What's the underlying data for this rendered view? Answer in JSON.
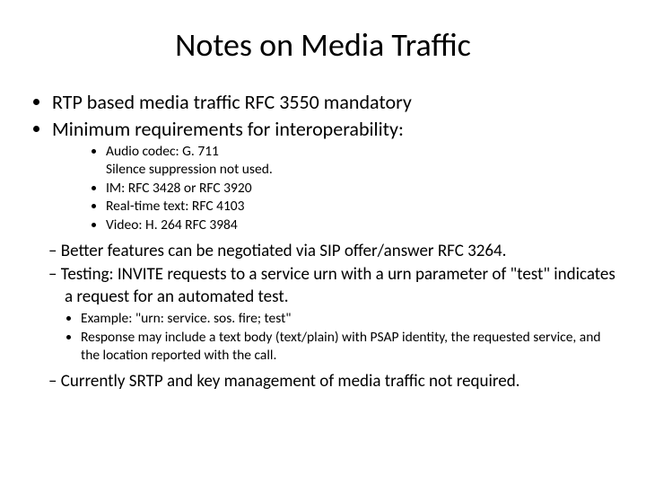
{
  "title": "Notes on Media Traffic",
  "bullets": {
    "rtp": "RTP based media traffic  RFC 3550 mandatory",
    "minreq": "Minimum requirements for interoperability:",
    "audio": "Audio codec: G. 711",
    "silence": "Silence suppression not used.",
    "im": "IM: RFC 3428 or  RFC 3920",
    "rtt": "Real-time text: RFC 4103",
    "video": "Video: H. 264 RFC 3984",
    "features": "Better features can be negotiated via SIP offer/answer RFC 3264.",
    "testing": "Testing: INVITE requests to a service urn with a urn parameter of \"test\" indicates a request for an automated test.",
    "example": "Example: \"urn: service. sos. fire; test\"",
    "response": "Response may include a text body (text/plain) with PSAP identity, the requested service, and the location reported with the call.",
    "srtp": "Currently SRTP and key management of media traffic not required."
  },
  "colors": {
    "text": "#000000",
    "background": "#ffffff"
  },
  "fonts": {
    "title_size": 36,
    "lvl1_size": 22,
    "lvl2_size": 19,
    "lvl3_size": 15
  }
}
